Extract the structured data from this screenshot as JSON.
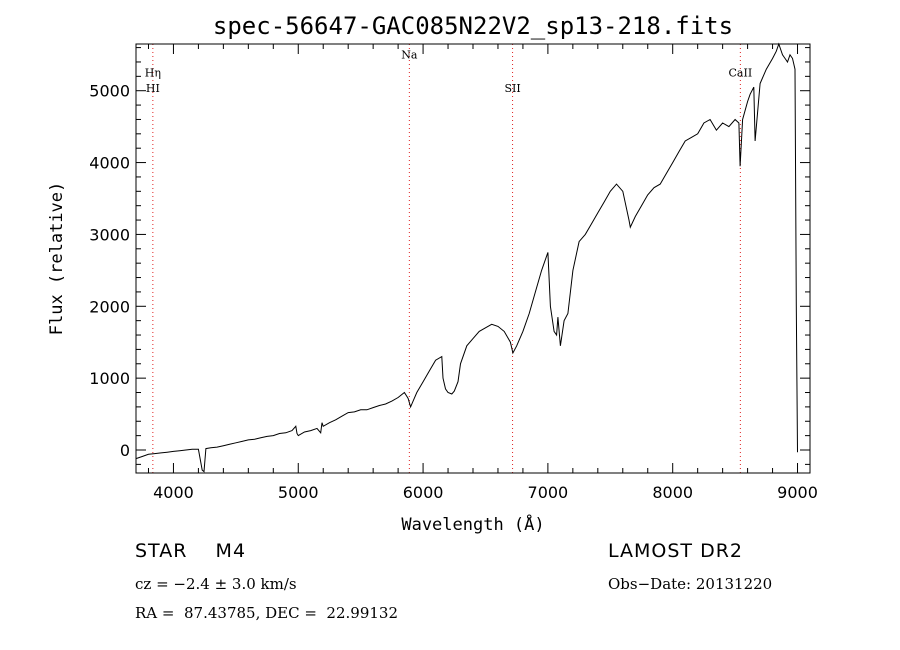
{
  "chart_data": {
    "type": "line",
    "title": "spec-56647-GAC085N22V2_sp13-218.fits",
    "xlabel": "Wavelength (Å)",
    "ylabel": "Flux (relative)",
    "xlim": [
      3700,
      9100
    ],
    "ylim": [
      -320,
      5650
    ],
    "xticks": [
      4000,
      5000,
      6000,
      7000,
      8000,
      9000
    ],
    "yticks": [
      0,
      1000,
      2000,
      3000,
      4000,
      5000
    ],
    "grid": false,
    "series": [
      {
        "x": [
          3700,
          3750,
          3800,
          3850,
          3900,
          3950,
          4000,
          4050,
          4100,
          4150,
          4200,
          4230,
          4245,
          4260,
          4300,
          4350,
          4400,
          4450,
          4500,
          4550,
          4600,
          4650,
          4700,
          4750,
          4800,
          4850,
          4900,
          4950,
          4980,
          4990,
          5000,
          5050,
          5100,
          5150,
          5180,
          5190,
          5200,
          5250,
          5300,
          5350,
          5400,
          5450,
          5500,
          5550,
          5600,
          5650,
          5700,
          5750,
          5800,
          5850,
          5880,
          5900,
          5920,
          5950,
          6000,
          6050,
          6100,
          6150,
          6160,
          6180,
          6200,
          6230,
          6250,
          6280,
          6300,
          6350,
          6400,
          6450,
          6500,
          6550,
          6600,
          6650,
          6700,
          6720,
          6750,
          6800,
          6850,
          6900,
          6950,
          7000,
          7020,
          7050,
          7070,
          7080,
          7100,
          7130,
          7160,
          7200,
          7250,
          7300,
          7350,
          7400,
          7450,
          7500,
          7550,
          7600,
          7650,
          7660,
          7700,
          7750,
          7800,
          7850,
          7900,
          7950,
          8000,
          8050,
          8100,
          8150,
          8200,
          8250,
          8300,
          8350,
          8400,
          8450,
          8500,
          8530,
          8540,
          8560,
          8600,
          8620,
          8650,
          8660,
          8700,
          8750,
          8800,
          8830,
          8850,
          8880,
          8900,
          8920,
          8940,
          8960,
          8980,
          8990,
          9000
        ],
        "values": [
          -120,
          -90,
          -60,
          -50,
          -40,
          -30,
          -20,
          -10,
          0,
          10,
          10,
          -280,
          -300,
          20,
          30,
          40,
          60,
          80,
          100,
          120,
          140,
          150,
          170,
          190,
          200,
          230,
          240,
          270,
          330,
          230,
          200,
          250,
          270,
          300,
          240,
          380,
          330,
          380,
          420,
          470,
          520,
          530,
          560,
          560,
          590,
          620,
          640,
          680,
          730,
          800,
          720,
          600,
          680,
          800,
          950,
          1100,
          1250,
          1300,
          1000,
          850,
          800,
          780,
          820,
          950,
          1200,
          1450,
          1550,
          1650,
          1700,
          1750,
          1720,
          1650,
          1500,
          1350,
          1450,
          1650,
          1900,
          2200,
          2500,
          2750,
          2000,
          1650,
          1600,
          1850,
          1450,
          1800,
          1900,
          2500,
          2900,
          3000,
          3150,
          3300,
          3450,
          3600,
          3700,
          3600,
          3200,
          3100,
          3250,
          3400,
          3550,
          3650,
          3700,
          3850,
          4000,
          4150,
          4300,
          4350,
          4400,
          4550,
          4600,
          4450,
          4550,
          4500,
          4600,
          4550,
          3950,
          4600,
          4850,
          4950,
          5050,
          4300,
          5100,
          5300,
          5450,
          5550,
          5650,
          5500,
          5450,
          5400,
          5500,
          5450,
          5300,
          2000,
          -30
        ]
      }
    ],
    "line_markers": [
      {
        "label": "Hη",
        "x": 3835,
        "label_y": 5200
      },
      {
        "label": "HI",
        "x": 3835,
        "label_y": 4980
      },
      {
        "label": "Na",
        "x": 5890,
        "label_y": 5450
      },
      {
        "label": "SII",
        "x": 6717,
        "label_y": 4980
      },
      {
        "label": "CaII",
        "x": 8542,
        "label_y": 5200
      }
    ]
  },
  "info": {
    "class_line": "STAR    M4",
    "survey": "LAMOST DR2",
    "cz_line": "cz = −2.4 ± 3.0 km/s",
    "obs_date": "Obs−Date: 20131220",
    "radec": "RA =  87.43785, DEC =  22.99132"
  },
  "colors": {
    "spectrum": "#000000",
    "marker_line": "#e02020",
    "axis": "#000000"
  }
}
